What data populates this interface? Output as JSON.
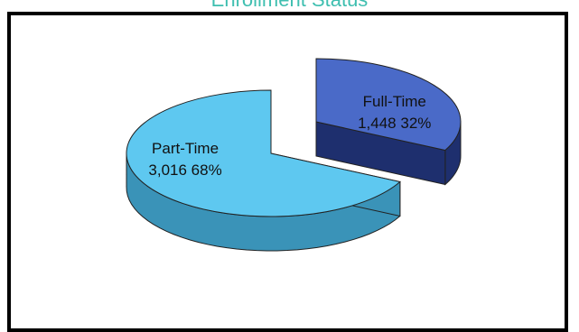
{
  "chart_data": {
    "type": "pie",
    "title": "Enrollment Status",
    "slices": [
      {
        "label": "Part-Time",
        "value": 3016,
        "value_label": "3,016",
        "percent_label": "68%",
        "color": "#5ec8f0",
        "side_color": "#3a93b8"
      },
      {
        "label": "Full-Time",
        "value": 1448,
        "value_label": "1,448",
        "percent_label": "32%",
        "color": "#4a6ac8",
        "side_color": "#1e2f6e"
      }
    ],
    "style": "3d-exploded",
    "legend": "none"
  }
}
